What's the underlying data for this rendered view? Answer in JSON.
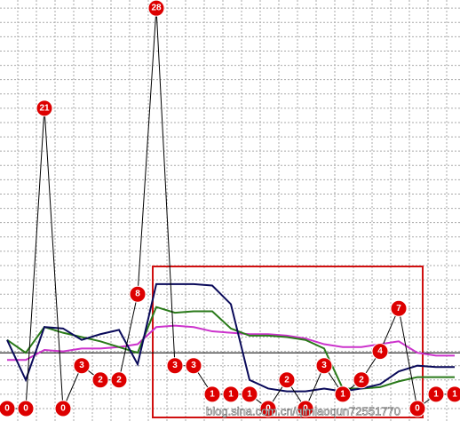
{
  "chart_data": {
    "type": "line",
    "categories": [
      null,
      null,
      null,
      null,
      null,
      null,
      null,
      null,
      null,
      null,
      null,
      null,
      null,
      null,
      null,
      null,
      null,
      null,
      null,
      null,
      null,
      null,
      null,
      null,
      null
    ],
    "series": [
      {
        "color": "#000000",
        "marker_color": "#dd0000",
        "values": [
          0,
          0,
          21,
          0,
          3,
          2,
          2,
          8,
          28,
          3,
          3,
          1,
          1,
          1,
          0,
          2,
          0,
          3,
          1,
          2,
          4,
          7,
          0,
          1,
          1
        ]
      },
      {
        "color": "#0a0a5a",
        "values": [
          4.8,
          2,
          5.7,
          5.6,
          4.8,
          5.2,
          5.5,
          3.1,
          8.7,
          8.7,
          8.7,
          8.6,
          7.3,
          2,
          1.4,
          1.2,
          1.2,
          1.4,
          1.2,
          1.4,
          1.7,
          2.6,
          3,
          2.9,
          2.9
        ]
      },
      {
        "color": "#2a7a1a",
        "values": [
          4.8,
          3.9,
          5.7,
          5.3,
          5,
          4.7,
          4.3,
          3.9,
          7.1,
          6.7,
          6.8,
          6.8,
          5.6,
          5.1,
          5.1,
          5,
          4.8,
          4.2,
          1.4,
          1.4,
          1.5,
          1.9,
          2.2,
          2.2,
          2.2
        ]
      },
      {
        "color": "#cc33cc",
        "values": [
          3.4,
          3.4,
          4.1,
          4,
          4.2,
          4.2,
          4.3,
          4.5,
          5.7,
          5.8,
          5.7,
          5.4,
          5.3,
          5.2,
          5.2,
          5.1,
          4.9,
          4.5,
          4.3,
          4.3,
          4.5,
          4.7,
          3.9,
          3.7,
          3.7
        ]
      }
    ],
    "reference_line": 3.9,
    "ylim": [
      -0.87,
      28.57
    ],
    "yticks": [
      0,
      1,
      2,
      3,
      4,
      5,
      6,
      7,
      8,
      9,
      10,
      11,
      12,
      13,
      14,
      15,
      16,
      17,
      18,
      19,
      20,
      21,
      22,
      23,
      24,
      25,
      26,
      27,
      28
    ],
    "grid": true,
    "annotation": "blog.sina.com.cn/qimiaoqun72551770"
  }
}
